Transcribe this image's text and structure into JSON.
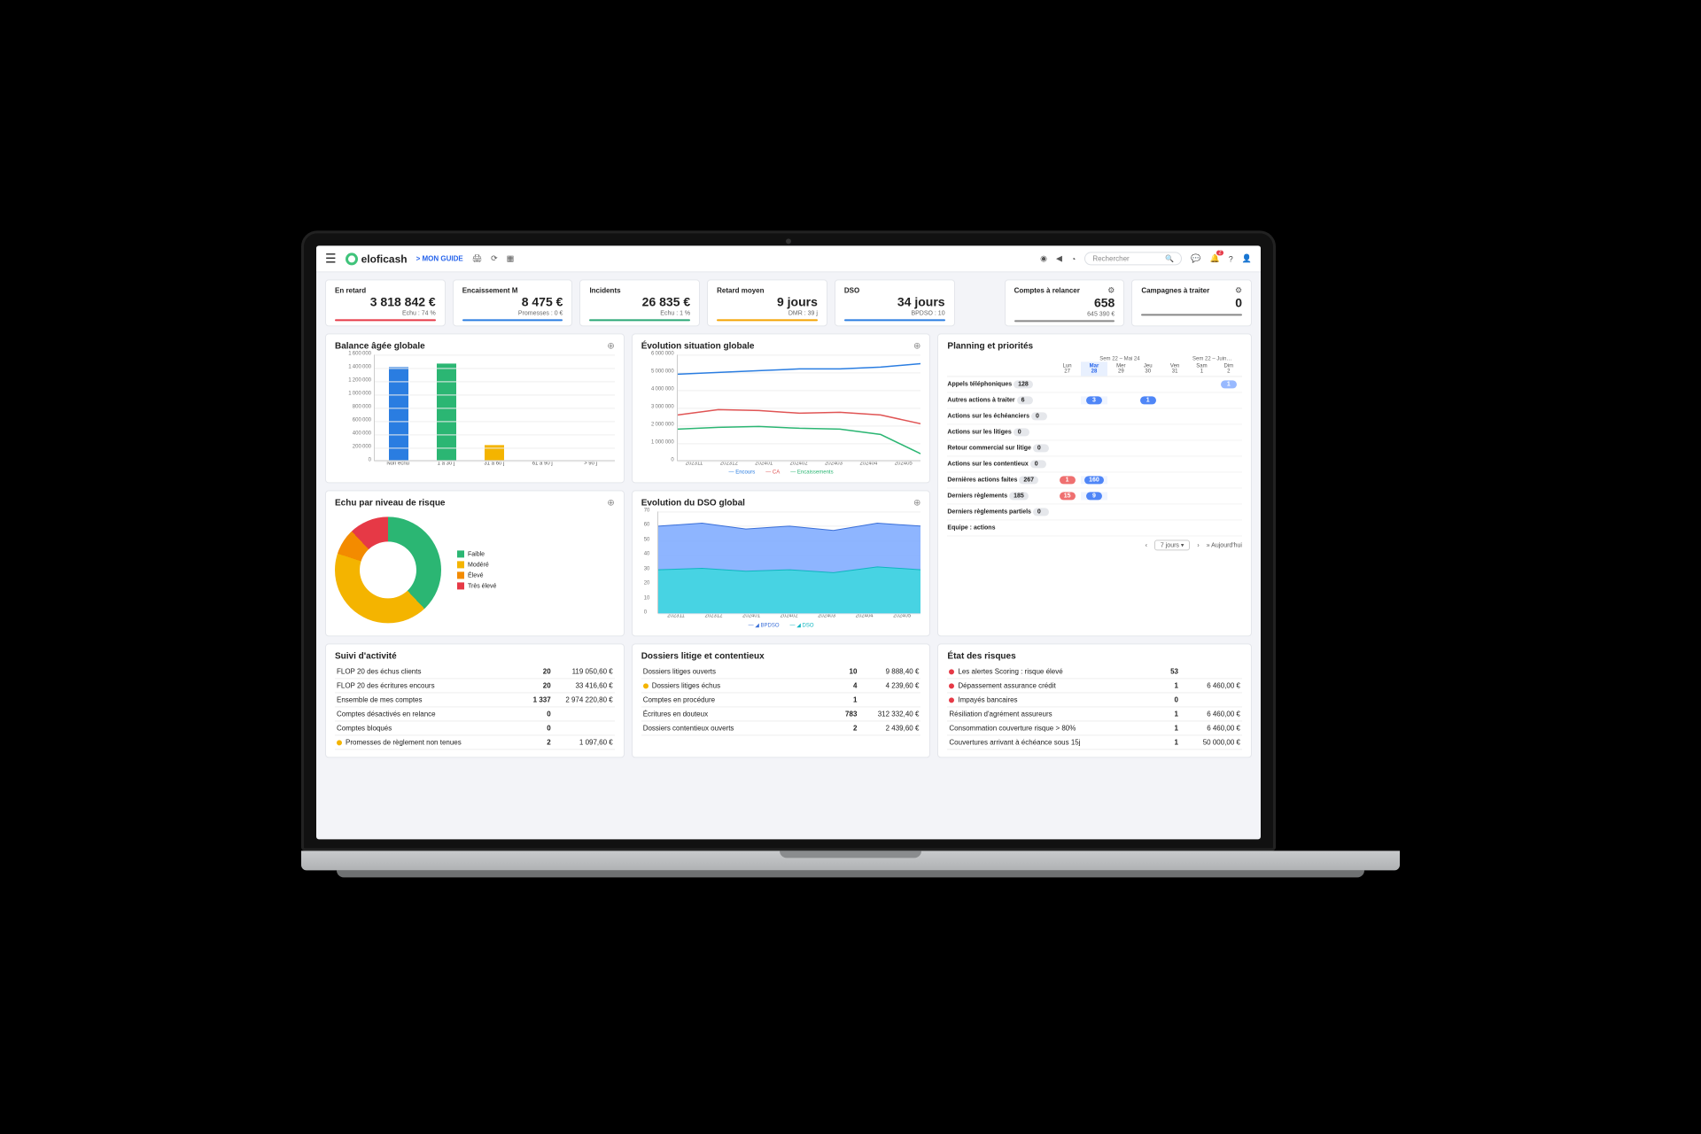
{
  "topbar": {
    "brand": "eloficash",
    "guide": "> MON GUIDE",
    "search_placeholder": "Rechercher",
    "bell_badge": "2"
  },
  "kpi": [
    {
      "label": "En retard",
      "value": "3 818 842 €",
      "sub": "Echu : 74 %",
      "color": "#e63946"
    },
    {
      "label": "Encaissement M",
      "value": "8 475 €",
      "sub": "Promesses : 0 €",
      "color": "#2a7de1"
    },
    {
      "label": "Incidents",
      "value": "26 835 €",
      "sub": "Echu : 1 %",
      "color": "#2aa876"
    },
    {
      "label": "Retard moyen",
      "value": "9 jours",
      "sub": "DMR : 39 j",
      "color": "#f4a300"
    },
    {
      "label": "DSO",
      "value": "34 jours",
      "sub": "BPDSO : 10",
      "color": "#2a7de1"
    },
    {
      "label": "Comptes à relancer",
      "value": "658",
      "sub": "645 390 €",
      "color": "#888",
      "gear": true
    },
    {
      "label": "Campagnes à traiter",
      "value": "0",
      "sub": "",
      "color": "#888",
      "gear": true
    }
  ],
  "balance": {
    "title": "Balance âgée globale",
    "ymax": 1600000,
    "ytick": 200000,
    "categories": [
      "Non échu",
      "1 à 30 j",
      "31 à 60 j",
      "61 à 90 j",
      "> 90 j"
    ],
    "values": [
      1400000,
      1450000,
      230000,
      0,
      0
    ],
    "colors": [
      "#2a7de1",
      "#2bb673",
      "#f4b400",
      "#e63946",
      "#b03060"
    ],
    "grid_color": "#eeeeee"
  },
  "evolution": {
    "title": "Évolution situation globale",
    "ymax": 6000000,
    "ytick": 1000000,
    "x": [
      "202311",
      "202312",
      "202401",
      "202402",
      "202403",
      "202404",
      "202405"
    ],
    "series": [
      {
        "name": "Encours",
        "color": "#2a7de1",
        "values": [
          4900000,
          5000000,
          5100000,
          5200000,
          5200000,
          5300000,
          5500000
        ]
      },
      {
        "name": "CA",
        "color": "#e05555",
        "values": [
          2600000,
          2900000,
          2850000,
          2700000,
          2750000,
          2600000,
          2100000
        ]
      },
      {
        "name": "Encaissements",
        "color": "#2bb673",
        "values": [
          1800000,
          1900000,
          1950000,
          1850000,
          1800000,
          1500000,
          400000
        ]
      }
    ]
  },
  "risk_donut": {
    "title": "Echu par niveau de risque",
    "slices": [
      {
        "label": "Faible",
        "color": "#2bb673",
        "pct": 38
      },
      {
        "label": "Modéré",
        "color": "#f4b400",
        "pct": 42
      },
      {
        "label": "Élevé",
        "color": "#f38b00",
        "pct": 8
      },
      {
        "label": "Très élevé",
        "color": "#e63946",
        "pct": 12
      }
    ]
  },
  "dso": {
    "title": "Evolution du DSO global",
    "ymax": 70,
    "ytick": 10,
    "x": [
      "202311",
      "202312",
      "202401",
      "202402",
      "202403",
      "202404",
      "202405"
    ],
    "upper": [
      60,
      62,
      58,
      60,
      57,
      62,
      60
    ],
    "lower": [
      30,
      31,
      29,
      30,
      28,
      32,
      30
    ],
    "upper_color": "#7aa8ff",
    "lower_color": "#3fd6e0",
    "legend": [
      "BPDSO",
      "DSO"
    ]
  },
  "planning": {
    "title": "Planning et priorités",
    "weeks": [
      "Sem 22 – Mai 24",
      "Sem 22 – Juin…"
    ],
    "days": [
      {
        "d": "Lun",
        "n": "27"
      },
      {
        "d": "Mar",
        "n": "28",
        "hl": true
      },
      {
        "d": "Mer",
        "n": "29"
      },
      {
        "d": "Jeu",
        "n": "30"
      },
      {
        "d": "Ven",
        "n": "31"
      },
      {
        "d": "Sam",
        "n": "1"
      },
      {
        "d": "Dim",
        "n": "2"
      }
    ],
    "rows": [
      {
        "label": "Appels téléphoniques",
        "total": "128",
        "cells": [
          "",
          "",
          "",
          "",
          "",
          "",
          "1"
        ],
        "style": [
          "",
          "",
          "",
          "",
          "",
          "",
          "dblue"
        ]
      },
      {
        "label": "Autres actions à traiter",
        "total": "6",
        "cells": [
          "",
          "3",
          "",
          "1",
          "",
          "",
          ""
        ],
        "style": [
          "",
          "blue",
          "",
          "blue",
          "",
          "",
          ""
        ]
      },
      {
        "label": "Actions sur les échéanciers",
        "total": "0",
        "cells": [
          "",
          "",
          "",
          "",
          "",
          "",
          ""
        ]
      },
      {
        "label": "Actions sur les litiges",
        "total": "0",
        "cells": [
          "",
          "",
          "",
          "",
          "",
          "",
          ""
        ]
      },
      {
        "label": "Retour commercial sur litige",
        "total": "0",
        "cells": [
          "",
          "",
          "",
          "",
          "",
          "",
          ""
        ]
      },
      {
        "label": "Actions sur les contentieux",
        "total": "0",
        "cells": [
          "",
          "",
          "",
          "",
          "",
          "",
          ""
        ]
      },
      {
        "label": "Dernières actions faites",
        "total": "267",
        "cells": [
          "1",
          "160",
          "",
          "",
          "",
          "",
          ""
        ],
        "style": [
          "red",
          "blue",
          "",
          "",
          "",
          "",
          ""
        ]
      },
      {
        "label": "Derniers règlements",
        "total": "185",
        "cells": [
          "15",
          "9",
          "",
          "",
          "",
          "",
          ""
        ],
        "style": [
          "red",
          "blue",
          "",
          "",
          "",
          "",
          ""
        ]
      },
      {
        "label": "Derniers règlements partiels",
        "total": "0",
        "cells": [
          "",
          "",
          "",
          "",
          "",
          "",
          ""
        ]
      },
      {
        "label": "Equipe : actions",
        "total": "",
        "cells": [
          "",
          "",
          "",
          "",
          "",
          "",
          ""
        ]
      }
    ],
    "selector": "7 jours",
    "today": "» Aujourd'hui"
  },
  "suivi": {
    "title": "Suivi d'activité",
    "rows": [
      {
        "l": "FLOP 20 des échus clients",
        "c": "20",
        "v": "119 050,60 €"
      },
      {
        "l": "FLOP 20 des écritures encours",
        "c": "20",
        "v": "33 416,60 €"
      },
      {
        "l": "Ensemble de mes comptes",
        "c": "1 337",
        "v": "2 974 220,80 €"
      },
      {
        "l": "Comptes désactivés en relance",
        "c": "0",
        "v": ""
      },
      {
        "l": "Comptes bloqués",
        "c": "0",
        "v": ""
      },
      {
        "l": "Promesses de règlement non tenues",
        "c": "2",
        "v": "1 097,60 €",
        "dot": "#f4b400"
      }
    ]
  },
  "litige": {
    "title": "Dossiers litige et contentieux",
    "rows": [
      {
        "l": "Dossiers litiges ouverts",
        "c": "10",
        "v": "9 888,40 €"
      },
      {
        "l": "Dossiers litiges échus",
        "c": "4",
        "v": "4 239,60 €",
        "dot": "#f4b400"
      },
      {
        "l": "Comptes en procédure",
        "c": "1",
        "v": ""
      },
      {
        "l": "Écritures en douteux",
        "c": "783",
        "v": "312 332,40 €"
      },
      {
        "l": "Dossiers contentieux ouverts",
        "c": "2",
        "v": "2 439,60 €"
      }
    ]
  },
  "etat": {
    "title": "État des risques",
    "rows": [
      {
        "l": "Les alertes Scoring : risque élevé",
        "c": "53",
        "v": "",
        "dot": "#e63946"
      },
      {
        "l": "Dépassement assurance crédit",
        "c": "1",
        "v": "6 460,00 €",
        "dot": "#e63946"
      },
      {
        "l": "Impayés bancaires",
        "c": "0",
        "v": "",
        "dot": "#e63946"
      },
      {
        "l": "Résiliation d'agrément assureurs",
        "c": "1",
        "v": "6 460,00 €"
      },
      {
        "l": "Consommation couverture risque > 80%",
        "c": "1",
        "v": "6 460,00 €"
      },
      {
        "l": "Couvertures arrivant à échéance sous 15j",
        "c": "1",
        "v": "50 000,00 €"
      }
    ]
  }
}
